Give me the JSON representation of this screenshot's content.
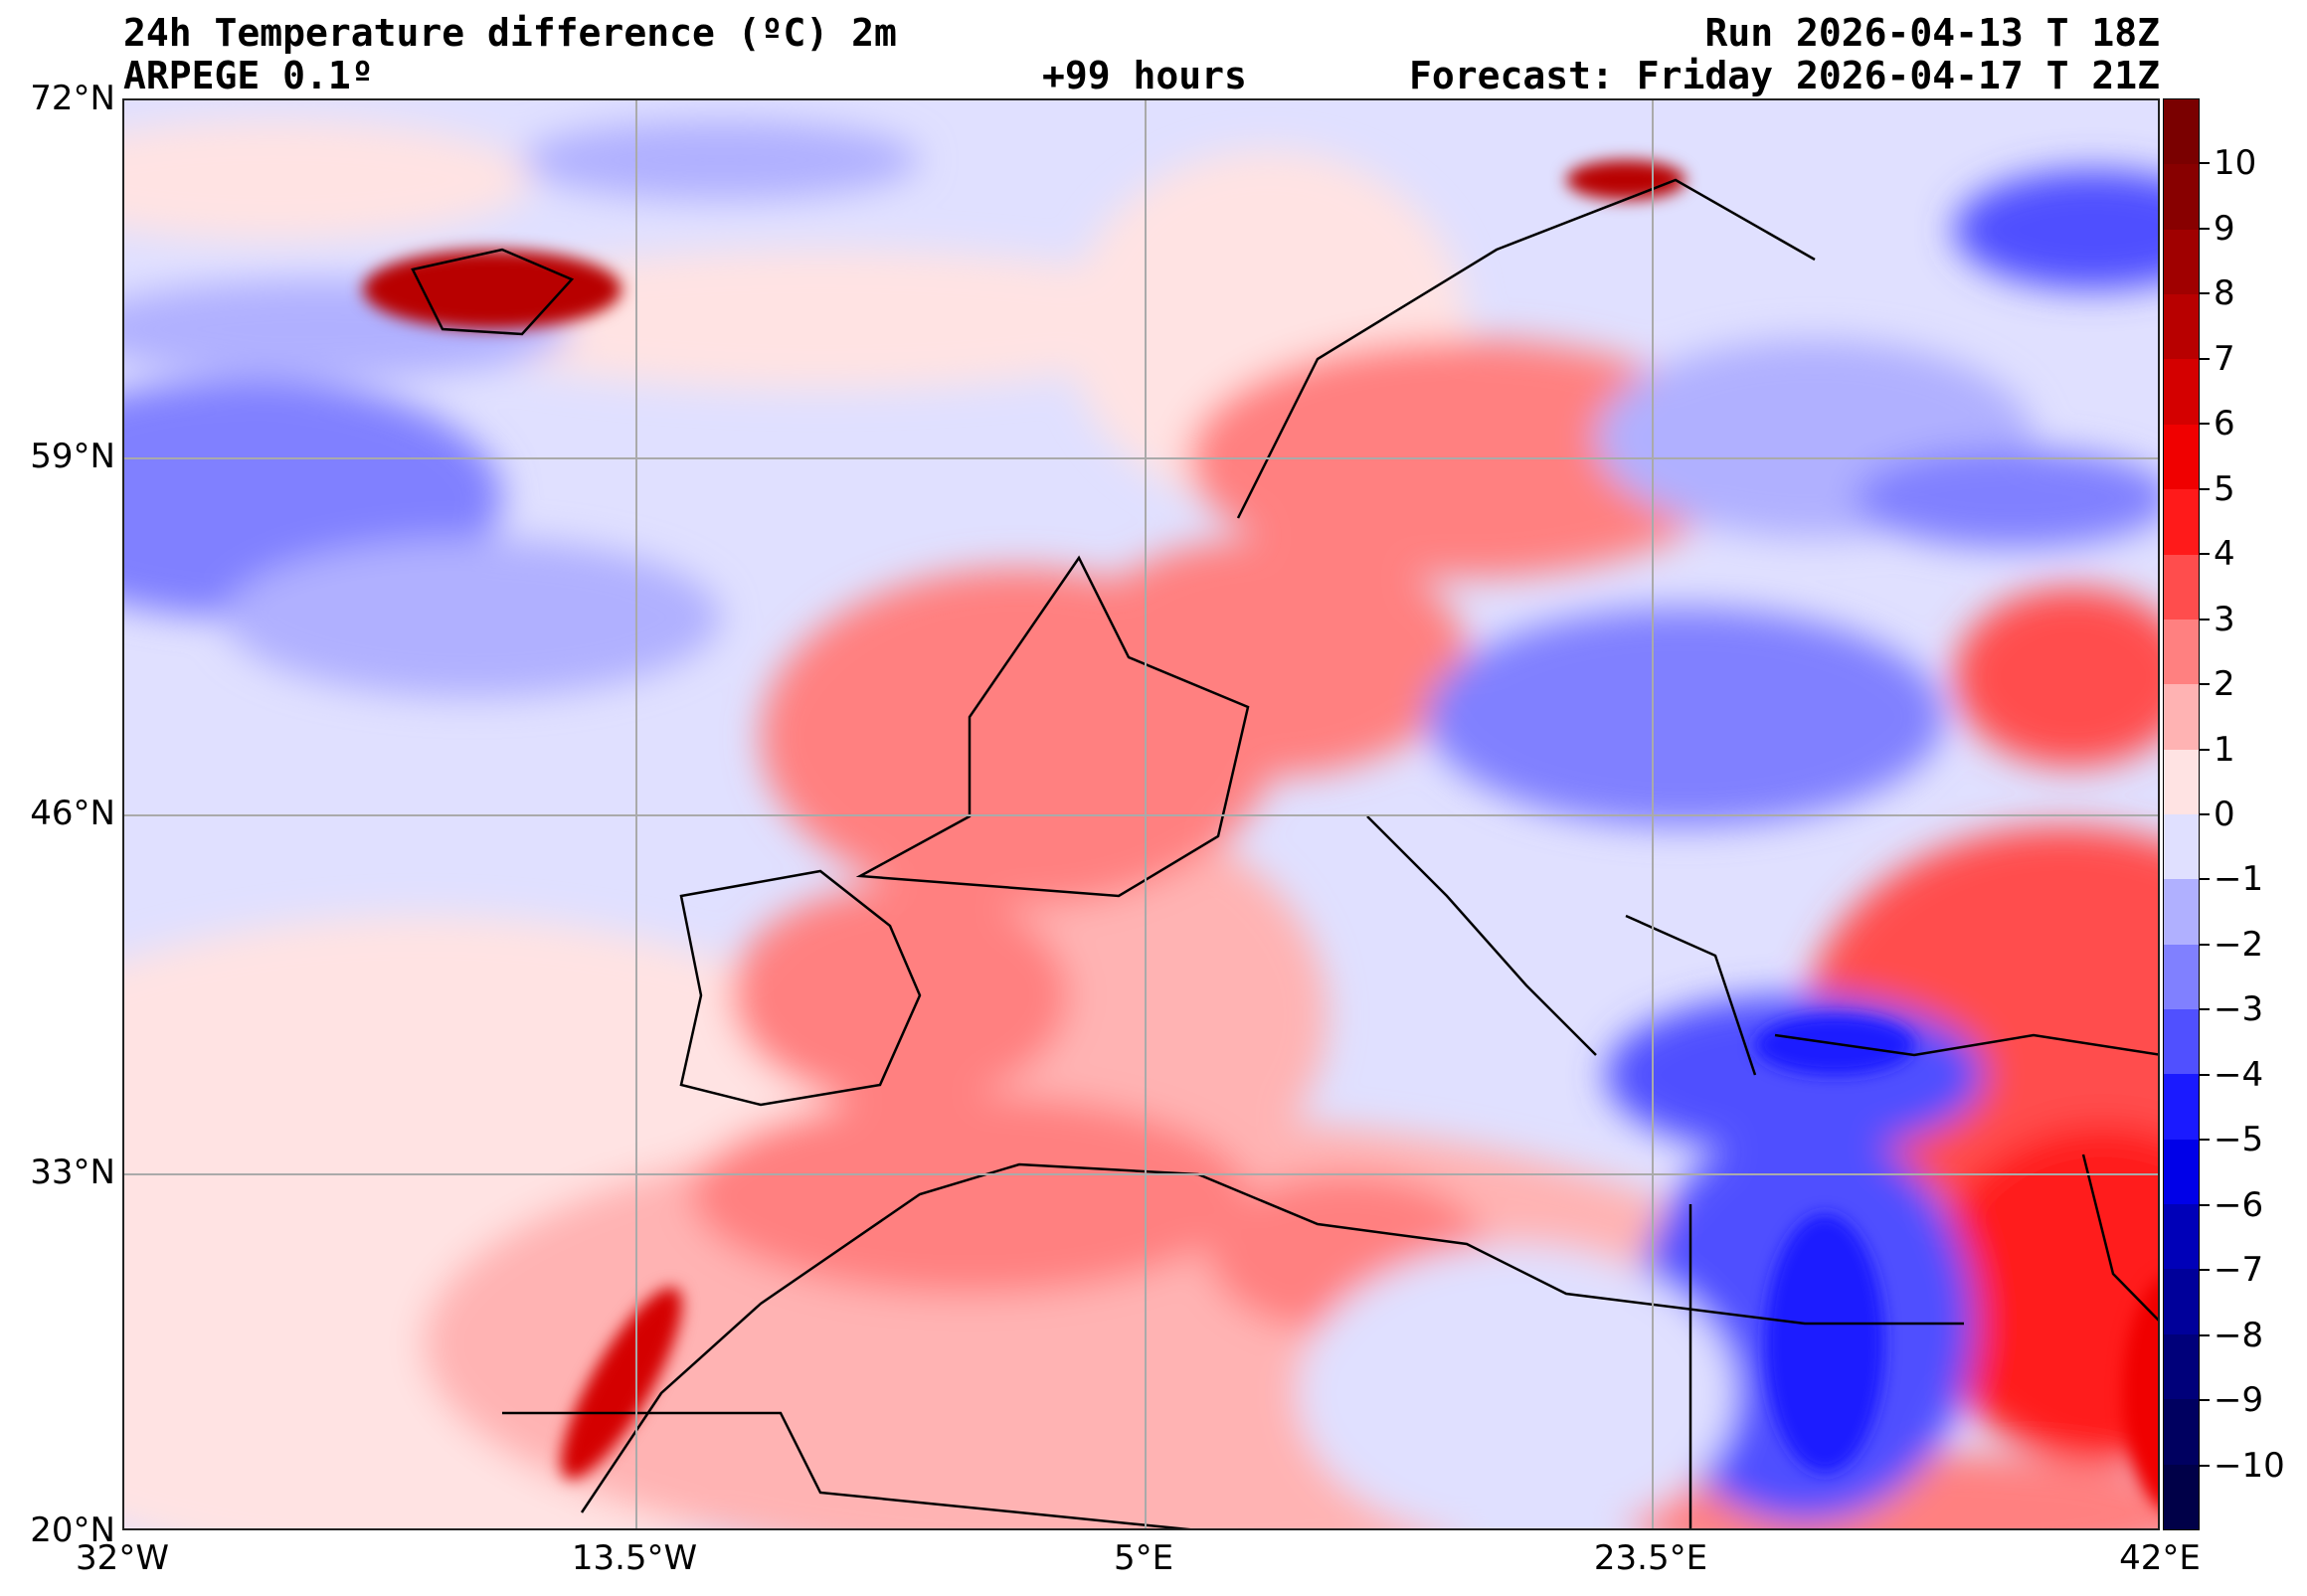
{
  "header": {
    "title": "24h Temperature difference (ºC) 2m",
    "model": "ARPEGE 0.1º",
    "lead_time": "+99 hours",
    "run": "Run 2026-04-13 T 18Z",
    "forecast": "Forecast: Friday 2026-04-17 T 21Z"
  },
  "axes": {
    "lat_labels": [
      "72°N",
      "59°N",
      "46°N",
      "33°N",
      "20°N"
    ],
    "lon_labels": [
      "32°W",
      "13.5°W",
      "5°E",
      "23.5°E",
      "42°E"
    ]
  },
  "colorbar": {
    "tick_labels": [
      "10",
      "9",
      "8",
      "7",
      "6",
      "5",
      "4",
      "3",
      "2",
      "1",
      "0",
      "−1",
      "−2",
      "−3",
      "−4",
      "−5",
      "−6",
      "−7",
      "−8",
      "−9",
      "−10"
    ],
    "colors": [
      "#7a0000",
      "#880000",
      "#a00000",
      "#b80000",
      "#d40000",
      "#f00000",
      "#ff1a1a",
      "#ff4d4d",
      "#ff8080",
      "#ffb3b3",
      "#ffe3e3",
      "#e0e0ff",
      "#b0b0ff",
      "#8080ff",
      "#5050ff",
      "#1a1aff",
      "#0000e8",
      "#0000b8",
      "#00009a",
      "#00007a",
      "#000060",
      "#000048"
    ]
  }
}
